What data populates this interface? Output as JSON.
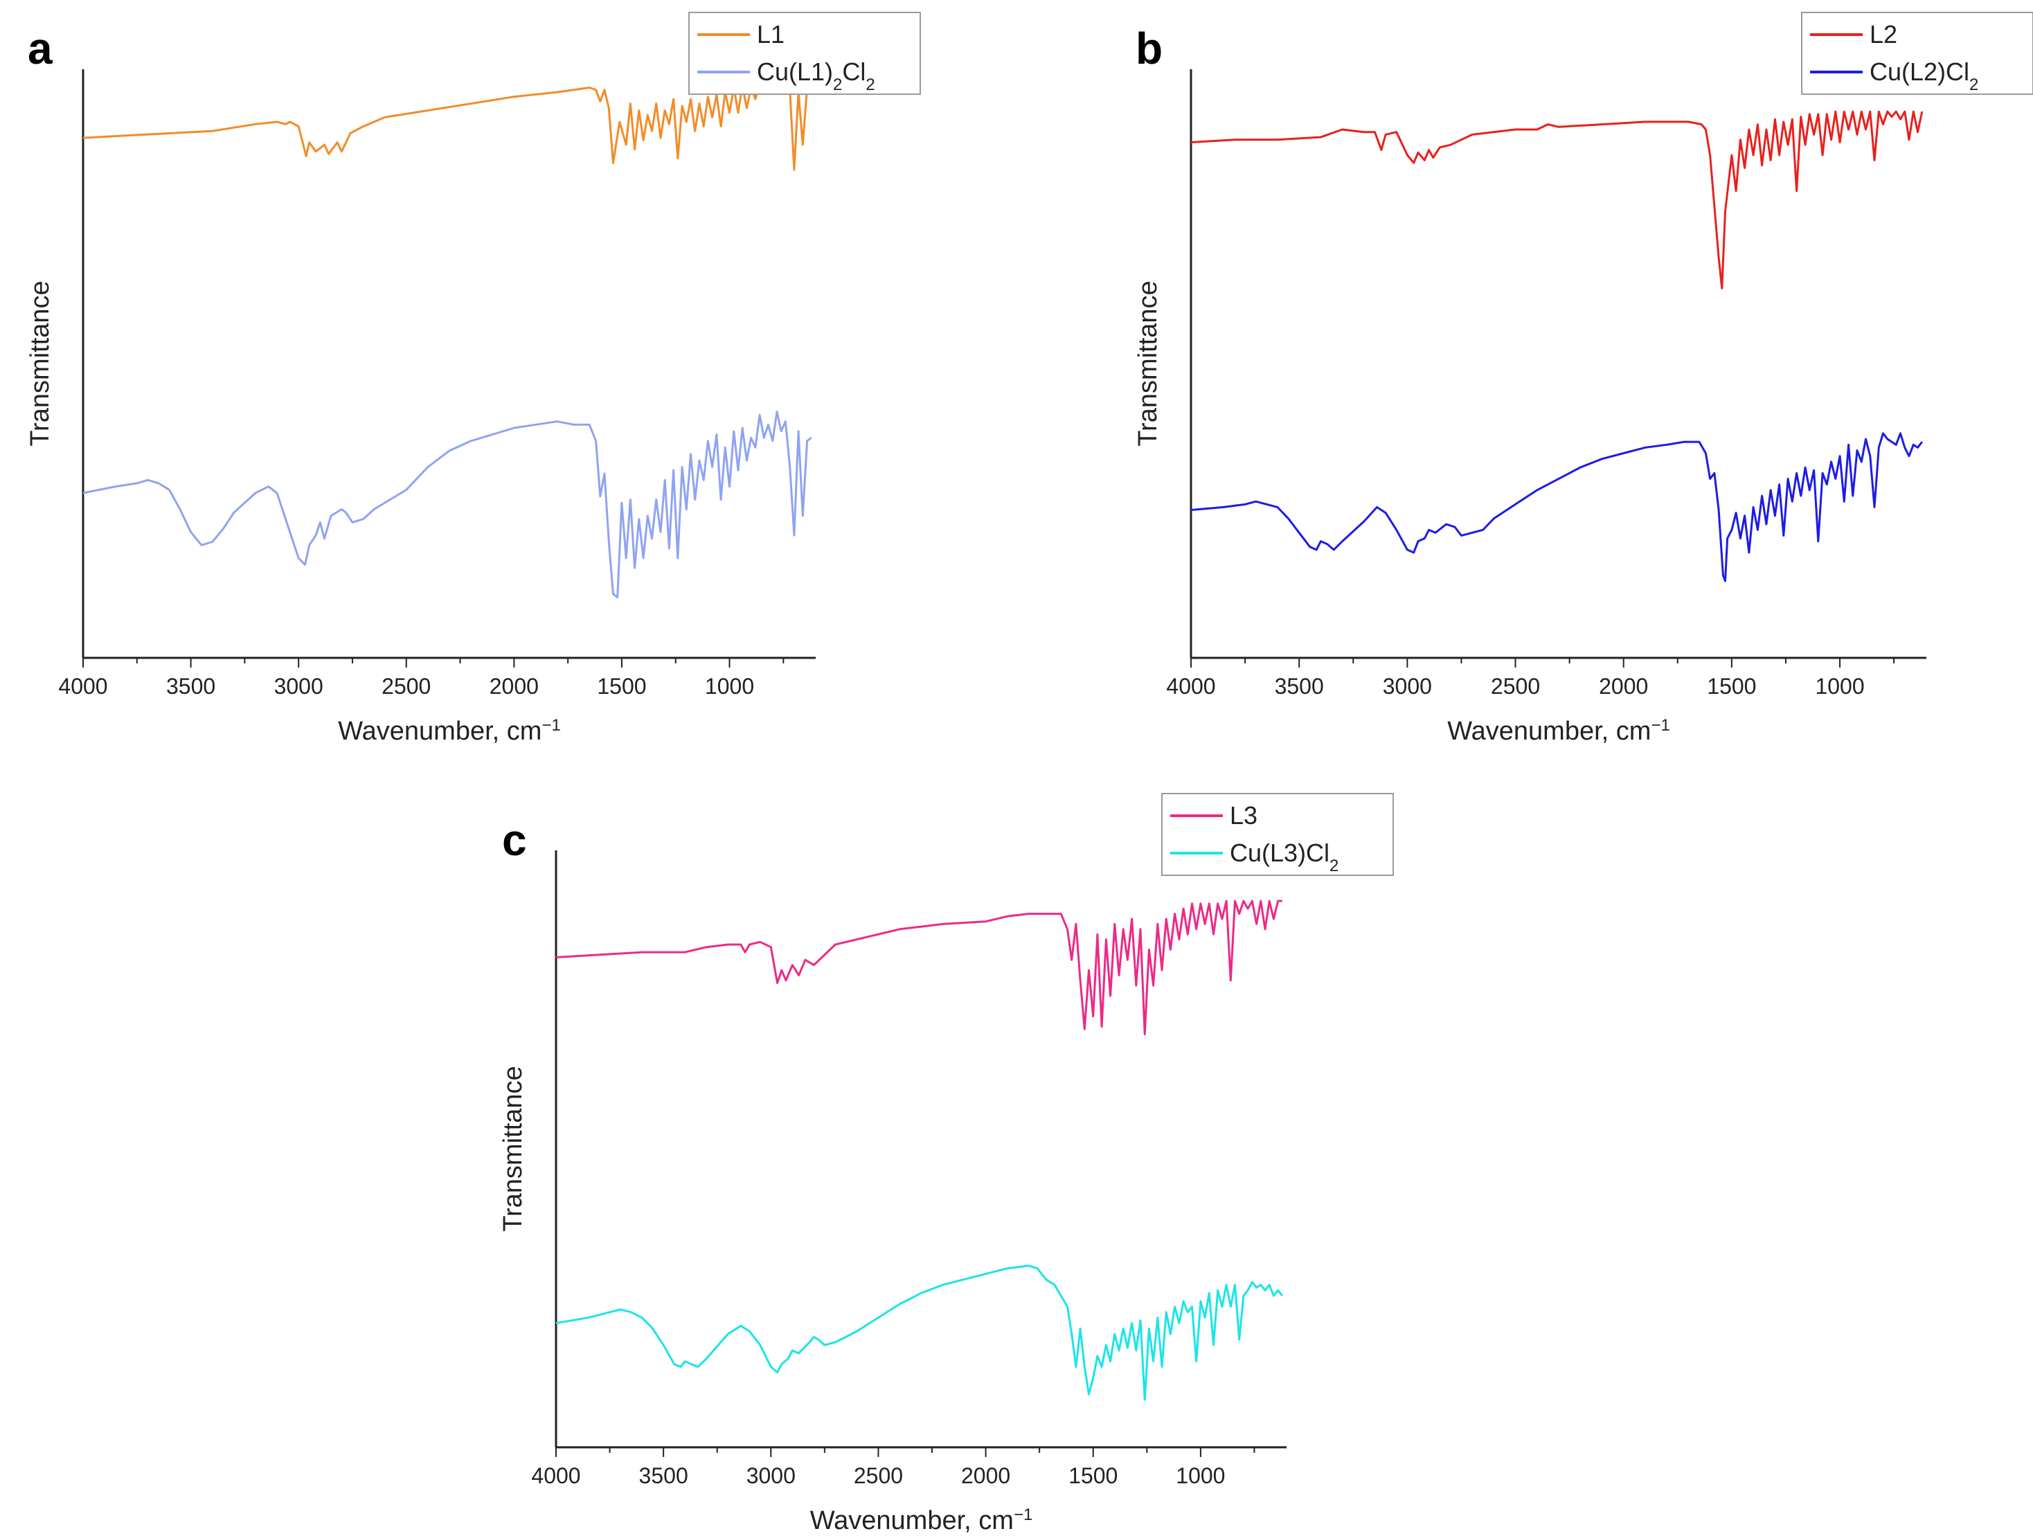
{
  "chart_data": [
    {
      "panel": "a",
      "type": "line",
      "xlabel": "Wavenumber, cm",
      "xlabel_sup": "−1",
      "ylabel": "Transmittance",
      "xlim": [
        4000,
        600
      ],
      "x_reversed": true,
      "x_ticks": [
        "4000",
        "3500",
        "3000",
        "2500",
        "2000",
        "1500",
        "1000"
      ],
      "ylim": [
        0,
        100
      ],
      "y_tick_labels": false,
      "legend_position": "top-right",
      "series": [
        {
          "name": "L1",
          "name_sub": "",
          "name_tail": "",
          "color": "#f28c28",
          "x": [
            4000,
            3800,
            3600,
            3400,
            3200,
            3100,
            3060,
            3040,
            3000,
            2965,
            2950,
            2920,
            2880,
            2860,
            2820,
            2800,
            2760,
            2700,
            2600,
            2400,
            2200,
            2000,
            1800,
            1650,
            1620,
            1600,
            1580,
            1560,
            1540,
            1510,
            1480,
            1460,
            1440,
            1420,
            1400,
            1380,
            1360,
            1340,
            1320,
            1300,
            1280,
            1260,
            1240,
            1220,
            1200,
            1180,
            1160,
            1140,
            1120,
            1100,
            1080,
            1060,
            1040,
            1020,
            1000,
            980,
            960,
            940,
            920,
            900,
            880,
            860,
            840,
            820,
            800,
            780,
            760,
            740,
            720,
            700,
            680,
            660,
            640,
            620
          ],
          "y": [
            73,
            74,
            75,
            76,
            79,
            80,
            79,
            80,
            78,
            65,
            71,
            67,
            70,
            66,
            71,
            67,
            75,
            78,
            82,
            85,
            88,
            91,
            93,
            95,
            94,
            89,
            94,
            86,
            62,
            80,
            70,
            88,
            68,
            85,
            72,
            83,
            76,
            88,
            73,
            85,
            79,
            90,
            64,
            87,
            80,
            90,
            76,
            88,
            78,
            91,
            82,
            92,
            78,
            93,
            84,
            95,
            84,
            96,
            86,
            95,
            90,
            97,
            93,
            96,
            94,
            97,
            95,
            97,
            94,
            59,
            93,
            70,
            95,
            96
          ]
        },
        {
          "name": "Cu(L1)",
          "name_sub": "2",
          "name_tail": "Cl₂",
          "color": "#8fa3f2",
          "x": [
            4000,
            3850,
            3750,
            3700,
            3650,
            3600,
            3550,
            3500,
            3450,
            3400,
            3350,
            3300,
            3200,
            3140,
            3100,
            3050,
            3000,
            2970,
            2950,
            2920,
            2900,
            2880,
            2850,
            2800,
            2780,
            2750,
            2700,
            2650,
            2600,
            2500,
            2400,
            2300,
            2200,
            2100,
            2000,
            1900,
            1800,
            1720,
            1650,
            1620,
            1600,
            1580,
            1560,
            1540,
            1520,
            1500,
            1480,
            1460,
            1440,
            1420,
            1400,
            1380,
            1360,
            1340,
            1320,
            1300,
            1280,
            1260,
            1240,
            1220,
            1200,
            1180,
            1160,
            1140,
            1120,
            1100,
            1080,
            1060,
            1040,
            1020,
            1000,
            980,
            960,
            940,
            920,
            900,
            880,
            860,
            840,
            820,
            800,
            780,
            760,
            740,
            720,
            700,
            680,
            660,
            640,
            620
          ],
          "y": [
            40,
            42,
            43,
            44,
            43,
            41,
            35,
            28,
            24,
            25,
            29,
            34,
            40,
            42,
            40,
            30,
            20,
            18,
            24,
            27,
            31,
            26,
            33,
            35,
            34,
            31,
            32,
            35,
            37,
            41,
            48,
            53,
            56,
            58,
            60,
            61,
            62,
            61,
            61,
            56,
            39,
            46,
            25,
            9,
            8,
            37,
            20,
            38,
            17,
            32,
            20,
            33,
            26,
            38,
            28,
            44,
            23,
            47,
            20,
            48,
            35,
            52,
            38,
            50,
            44,
            56,
            48,
            58,
            38,
            54,
            42,
            59,
            47,
            60,
            50,
            57,
            54,
            64,
            57,
            61,
            56,
            65,
            59,
            62,
            48,
            27,
            59,
            33,
            56,
            57
          ]
        }
      ]
    },
    {
      "panel": "b",
      "type": "line",
      "xlabel": "Wavenumber, cm",
      "xlabel_sup": "−1",
      "ylabel": "Transmittance",
      "xlim": [
        4000,
        600
      ],
      "x_reversed": true,
      "x_ticks": [
        "4000",
        "3500",
        "3000",
        "2500",
        "2000",
        "1500",
        "1000"
      ],
      "ylim": [
        0,
        100
      ],
      "y_tick_labels": false,
      "legend_position": "top-right",
      "series": [
        {
          "name": "L2",
          "name_sub": "",
          "name_tail": "",
          "color": "#e8201c",
          "x": [
            4000,
            3800,
            3600,
            3400,
            3300,
            3200,
            3150,
            3120,
            3100,
            3050,
            3000,
            2970,
            2950,
            2920,
            2900,
            2880,
            2850,
            2800,
            2700,
            2500,
            2400,
            2350,
            2300,
            2100,
            1900,
            1700,
            1640,
            1620,
            1600,
            1580,
            1560,
            1545,
            1530,
            1500,
            1480,
            1460,
            1440,
            1420,
            1400,
            1380,
            1360,
            1340,
            1320,
            1300,
            1280,
            1260,
            1240,
            1220,
            1200,
            1180,
            1160,
            1140,
            1120,
            1100,
            1080,
            1060,
            1040,
            1020,
            1000,
            980,
            960,
            940,
            920,
            900,
            880,
            860,
            840,
            820,
            800,
            780,
            760,
            740,
            720,
            700,
            680,
            660,
            640,
            620
          ],
          "y": [
            85,
            86,
            86,
            87,
            90,
            89,
            89,
            82,
            88,
            89,
            80,
            77,
            81,
            78,
            82,
            79,
            83,
            84,
            88,
            90,
            90,
            92,
            91,
            92,
            93,
            93,
            92,
            90,
            80,
            60,
            40,
            28,
            58,
            80,
            66,
            86,
            75,
            90,
            80,
            92,
            76,
            90,
            78,
            94,
            80,
            93,
            84,
            94,
            66,
            95,
            84,
            96,
            88,
            96,
            80,
            96,
            86,
            97,
            85,
            97,
            90,
            97,
            88,
            97,
            90,
            97,
            78,
            97,
            92,
            97,
            95,
            97,
            94,
            97,
            86,
            97,
            89,
            97
          ]
        },
        {
          "name": "Cu(L2)Cl",
          "name_sub": "2",
          "name_tail": "",
          "color": "#1c1ce6",
          "x": [
            4000,
            3850,
            3750,
            3700,
            3650,
            3600,
            3550,
            3500,
            3450,
            3420,
            3400,
            3370,
            3340,
            3300,
            3200,
            3140,
            3100,
            3050,
            3000,
            2970,
            2950,
            2920,
            2900,
            2870,
            2820,
            2780,
            2750,
            2700,
            2650,
            2600,
            2500,
            2400,
            2300,
            2200,
            2100,
            2000,
            1900,
            1800,
            1720,
            1650,
            1620,
            1600,
            1580,
            1560,
            1540,
            1530,
            1520,
            1500,
            1480,
            1460,
            1440,
            1420,
            1400,
            1380,
            1360,
            1340,
            1320,
            1300,
            1280,
            1260,
            1240,
            1220,
            1200,
            1180,
            1160,
            1140,
            1120,
            1100,
            1080,
            1060,
            1040,
            1020,
            1000,
            980,
            960,
            940,
            920,
            900,
            880,
            860,
            840,
            820,
            800,
            780,
            760,
            740,
            720,
            700,
            680,
            660,
            640,
            620
          ],
          "y": [
            35,
            36,
            37,
            38,
            37,
            36,
            32,
            27,
            22,
            21,
            24,
            23,
            21,
            24,
            31,
            36,
            34,
            28,
            21,
            20,
            24,
            25,
            28,
            27,
            30,
            29,
            26,
            27,
            28,
            32,
            37,
            42,
            46,
            50,
            53,
            55,
            57,
            58,
            59,
            59,
            55,
            46,
            48,
            35,
            12,
            10,
            25,
            28,
            34,
            25,
            33,
            20,
            36,
            28,
            40,
            30,
            42,
            33,
            44,
            26,
            46,
            38,
            48,
            40,
            50,
            42,
            49,
            24,
            48,
            44,
            52,
            46,
            54,
            38,
            58,
            40,
            56,
            52,
            60,
            54,
            36,
            57,
            62,
            60,
            59,
            58,
            62,
            57,
            54,
            58,
            57,
            59
          ]
        }
      ]
    },
    {
      "panel": "c",
      "type": "line",
      "xlabel": "Wavenumber, cm",
      "xlabel_sup": "−1",
      "ylabel": "Transmittance",
      "xlim": [
        4000,
        600
      ],
      "x_reversed": true,
      "x_ticks": [
        "4000",
        "3500",
        "3000",
        "2500",
        "2000",
        "1500",
        "1000"
      ],
      "ylim": [
        0,
        100
      ],
      "y_tick_labels": false,
      "legend_position": "top-right",
      "series": [
        {
          "name": "L3",
          "name_sub": "",
          "name_tail": "",
          "color": "#ec2a86",
          "x": [
            4000,
            3800,
            3600,
            3400,
            3300,
            3200,
            3140,
            3120,
            3100,
            3050,
            3000,
            2970,
            2950,
            2930,
            2900,
            2870,
            2840,
            2800,
            2700,
            2500,
            2400,
            2300,
            2200,
            2000,
            1900,
            1800,
            1700,
            1650,
            1620,
            1600,
            1580,
            1560,
            1540,
            1520,
            1500,
            1480,
            1460,
            1440,
            1420,
            1400,
            1380,
            1360,
            1340,
            1320,
            1300,
            1280,
            1260,
            1240,
            1220,
            1200,
            1180,
            1160,
            1140,
            1120,
            1100,
            1080,
            1060,
            1040,
            1020,
            1000,
            980,
            960,
            940,
            920,
            900,
            880,
            860,
            840,
            820,
            800,
            780,
            760,
            740,
            720,
            700,
            680,
            660,
            640,
            620
          ],
          "y": [
            75,
            76,
            77,
            77,
            79,
            80,
            80,
            77,
            80,
            81,
            79,
            65,
            70,
            66,
            72,
            68,
            74,
            72,
            80,
            84,
            86,
            87,
            88,
            89,
            91,
            92,
            92,
            92,
            86,
            74,
            88,
            66,
            47,
            70,
            52,
            84,
            48,
            82,
            60,
            88,
            68,
            86,
            74,
            90,
            64,
            86,
            45,
            78,
            64,
            88,
            70,
            90,
            78,
            92,
            82,
            94,
            84,
            96,
            86,
            96,
            88,
            96,
            84,
            96,
            90,
            97,
            66,
            97,
            92,
            97,
            94,
            97,
            88,
            97,
            86,
            97,
            90,
            97,
            97
          ]
        },
        {
          "name": "Cu(L3)Cl",
          "name_sub": "2",
          "name_tail": "",
          "color": "#1ce4e8",
          "x": [
            4000,
            3850,
            3750,
            3700,
            3650,
            3600,
            3550,
            3500,
            3450,
            3420,
            3400,
            3370,
            3340,
            3300,
            3200,
            3140,
            3100,
            3050,
            3000,
            2970,
            2950,
            2920,
            2900,
            2870,
            2820,
            2800,
            2780,
            2750,
            2700,
            2650,
            2600,
            2500,
            2400,
            2300,
            2200,
            2100,
            2000,
            1900,
            1800,
            1760,
            1720,
            1680,
            1650,
            1620,
            1600,
            1580,
            1560,
            1540,
            1520,
            1500,
            1480,
            1460,
            1440,
            1420,
            1400,
            1380,
            1360,
            1340,
            1320,
            1300,
            1280,
            1260,
            1240,
            1220,
            1200,
            1180,
            1160,
            1140,
            1120,
            1100,
            1080,
            1060,
            1040,
            1020,
            1000,
            980,
            960,
            940,
            920,
            900,
            880,
            860,
            840,
            820,
            800,
            780,
            760,
            740,
            720,
            700,
            680,
            660,
            640,
            620
          ],
          "y": [
            34,
            36,
            38,
            39,
            38,
            36,
            32,
            26,
            19,
            18,
            20,
            19,
            18,
            21,
            30,
            33,
            31,
            26,
            18,
            16,
            19,
            21,
            24,
            23,
            27,
            29,
            28,
            26,
            27,
            29,
            31,
            36,
            41,
            45,
            48,
            50,
            52,
            54,
            55,
            54,
            50,
            48,
            44,
            40,
            30,
            18,
            32,
            18,
            8,
            14,
            22,
            18,
            26,
            20,
            30,
            24,
            32,
            25,
            34,
            24,
            35,
            6,
            32,
            20,
            36,
            18,
            38,
            30,
            40,
            34,
            42,
            38,
            40,
            20,
            42,
            36,
            45,
            26,
            46,
            40,
            48,
            40,
            48,
            28,
            44,
            46,
            49,
            47,
            48,
            46,
            48,
            44,
            46,
            44
          ]
        }
      ]
    }
  ]
}
